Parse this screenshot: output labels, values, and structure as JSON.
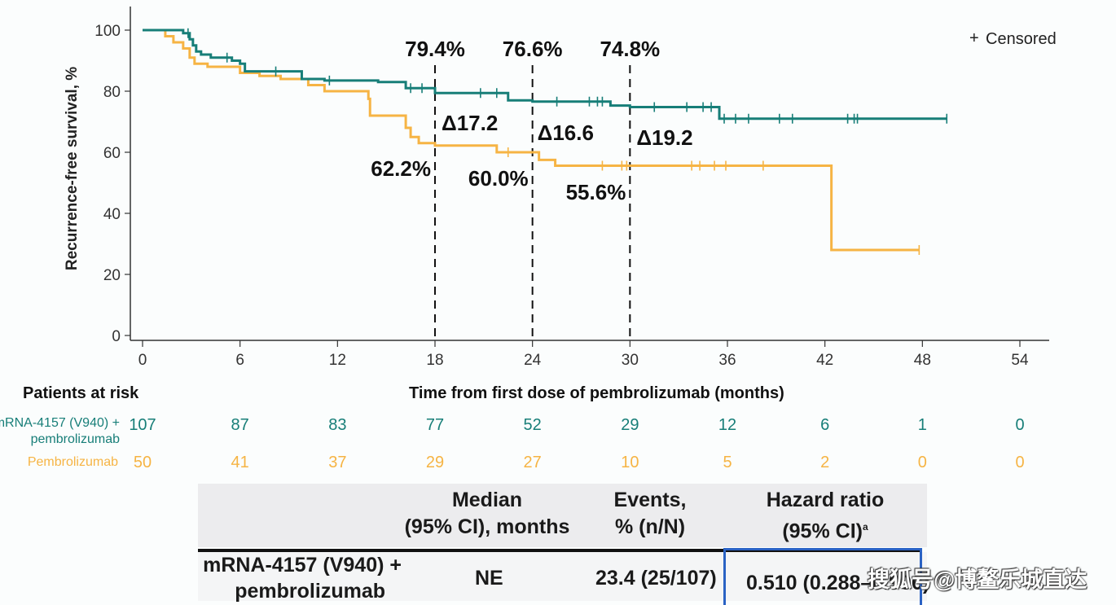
{
  "chart_data": {
    "type": "line",
    "subtype": "kaplan-meier",
    "title": "",
    "ylabel": "Recurrence-free survival, %",
    "xlabel": "Time from first dose of pembrolizumab (months)",
    "xlim": [
      0,
      54
    ],
    "ylim": [
      0,
      100
    ],
    "xticks": [
      "0",
      "6",
      "12",
      "18",
      "24",
      "30",
      "36",
      "42",
      "48",
      "54"
    ],
    "yticks": [
      "0",
      "20",
      "40",
      "60",
      "80",
      "100"
    ],
    "legend": {
      "label": "Censored",
      "symbol": "+",
      "position": "top-right"
    },
    "series": [
      {
        "name": "mRNA-4157 (V940) + pembrolizumab",
        "color": "#177e78",
        "steps": [
          [
            0,
            100
          ],
          [
            2.5,
            99
          ],
          [
            2.9,
            97
          ],
          [
            3.1,
            95
          ],
          [
            3.3,
            93
          ],
          [
            3.6,
            92
          ],
          [
            4.2,
            91
          ],
          [
            5.5,
            90
          ],
          [
            6,
            89
          ],
          [
            6.3,
            86.5
          ],
          [
            9.8,
            84
          ],
          [
            11.2,
            83.5
          ],
          [
            14.5,
            83
          ],
          [
            16.2,
            81
          ],
          [
            18,
            79.4
          ],
          [
            22.0,
            79.4
          ],
          [
            22.5,
            77
          ],
          [
            24,
            76.6
          ],
          [
            28.3,
            76.6
          ],
          [
            28.8,
            75.3
          ],
          [
            30,
            74.8
          ],
          [
            35.3,
            74.8
          ],
          [
            35.5,
            71
          ],
          [
            49.5,
            71
          ]
        ],
        "censor_x": [
          2.8,
          5.2,
          8.2,
          11.5,
          16.5,
          17.2,
          20.8,
          21.8,
          25.5,
          27.5,
          28.0,
          28.3,
          31.5,
          33.5,
          34.5,
          35.0,
          35.8,
          36.5,
          37.3,
          39.2,
          40.0,
          43.4,
          43.8,
          44.0,
          49.5
        ]
      },
      {
        "name": "Pembrolizumab",
        "color": "#f6b444",
        "steps": [
          [
            0,
            100
          ],
          [
            1.4,
            98
          ],
          [
            1.9,
            96
          ],
          [
            2.5,
            94
          ],
          [
            2.9,
            91
          ],
          [
            3.2,
            89
          ],
          [
            4.0,
            88
          ],
          [
            6,
            86
          ],
          [
            7.2,
            85
          ],
          [
            8.5,
            84
          ],
          [
            10.2,
            82
          ],
          [
            11.2,
            80
          ],
          [
            13.9,
            77.5
          ],
          [
            14.0,
            72
          ],
          [
            16.2,
            68
          ],
          [
            16.5,
            65
          ],
          [
            17.0,
            63
          ],
          [
            18,
            62.2
          ],
          [
            21.8,
            60.0
          ],
          [
            24,
            60.0
          ],
          [
            24.4,
            57.5
          ],
          [
            25.4,
            55.6
          ],
          [
            42.4,
            55.6
          ],
          [
            42.4,
            28
          ],
          [
            47.8,
            28
          ]
        ],
        "censor_x": [
          22.5,
          28.3,
          29.5,
          29.8,
          33.8,
          34.3,
          35.2,
          35.9,
          38.2,
          47.8
        ]
      }
    ],
    "reference_lines": [
      {
        "x": 18,
        "top_label": "79.4%",
        "bottom_label": "62.2%",
        "delta_label": "Δ17.2"
      },
      {
        "x": 24,
        "top_label": "76.6%",
        "bottom_label": "60.0%",
        "delta_label": "Δ16.6"
      },
      {
        "x": 30,
        "top_label": "74.8%",
        "bottom_label": "55.6%",
        "delta_label": "Δ19.2"
      }
    ]
  },
  "risk_table": {
    "title": "Patients at risk",
    "rows": [
      {
        "label_line1": "mRNA-4157 (V940) +",
        "label_line2": "pembrolizumab",
        "values": [
          "107",
          "87",
          "83",
          "77",
          "52",
          "29",
          "12",
          "6",
          "1",
          "0"
        ]
      },
      {
        "label_line1": "Pembrolizumab",
        "label_line2": "",
        "values": [
          "50",
          "41",
          "37",
          "29",
          "27",
          "10",
          "5",
          "2",
          "0",
          "0"
        ]
      }
    ]
  },
  "summary_table": {
    "headers": [
      {
        "line1": "",
        "line2": ""
      },
      {
        "line1": "Median",
        "line2": "(95% CI), months"
      },
      {
        "line1": "Events,",
        "line2": "% (n/N)"
      },
      {
        "line1": "Hazard ratio",
        "line2": "(95% CI)",
        "sup": "a"
      }
    ],
    "rows": [
      {
        "arm_line1": "mRNA-4157 (V940) +",
        "arm_line2": "pembrolizumab",
        "median": "NE",
        "events": "23.4 (25/107)",
        "hr": "0.510 (0.288–0.906)"
      }
    ]
  },
  "watermark": "搜狐号@博鳌乐城直达"
}
